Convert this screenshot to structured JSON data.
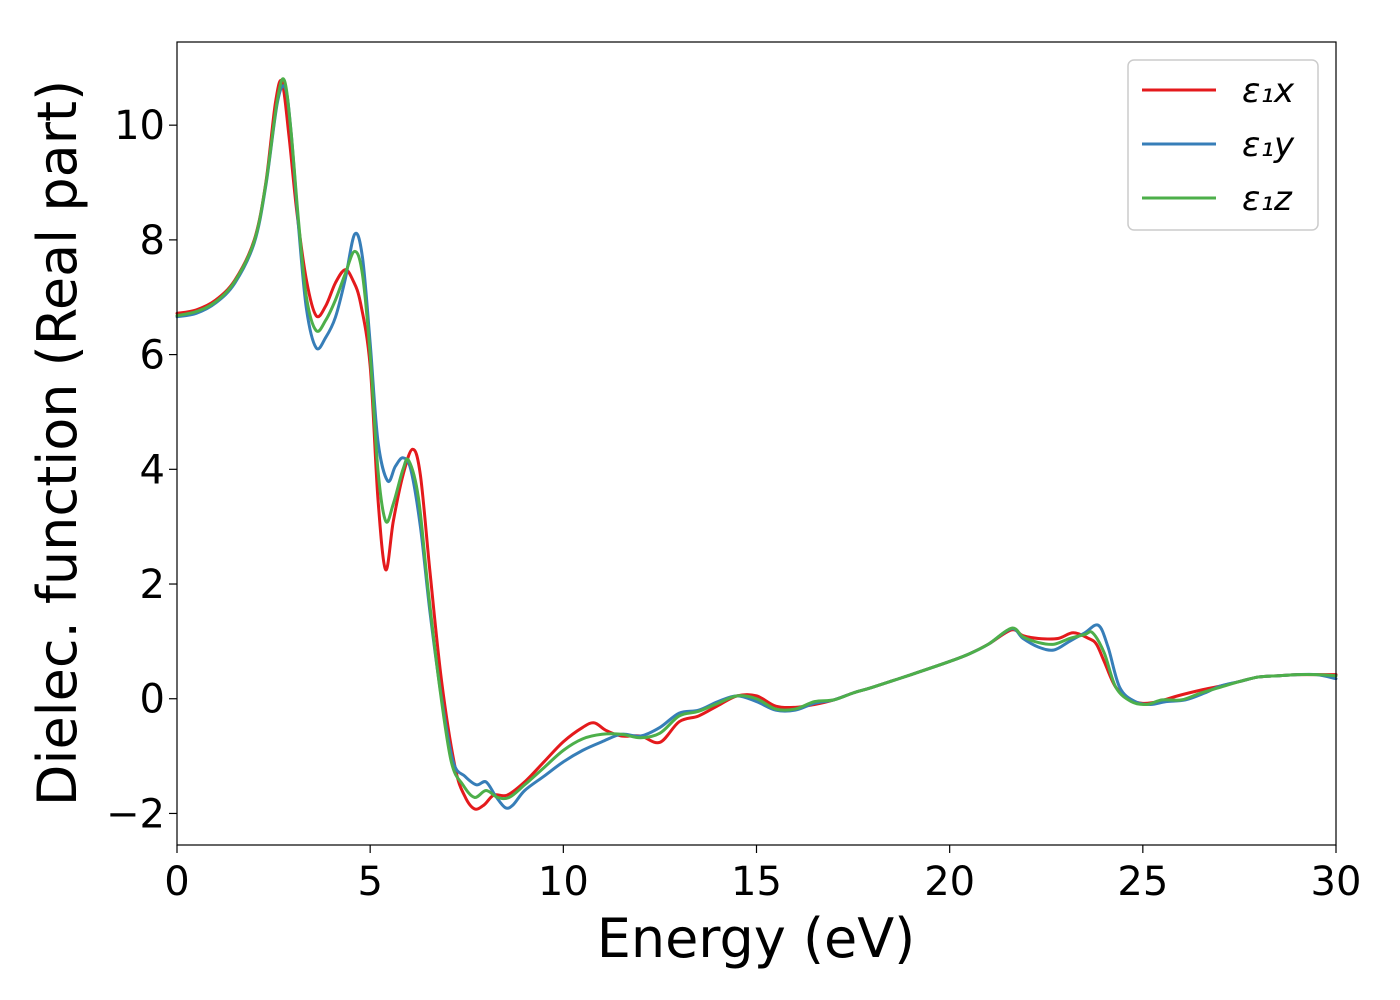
{
  "chart_data": {
    "type": "line",
    "xlabel": "Energy (eV)",
    "ylabel": "Dielec. function (Real part)",
    "xlim": [
      0,
      30
    ],
    "ylim": [
      -2.55,
      11.45
    ],
    "x_ticks": [
      0,
      5,
      10,
      15,
      20,
      25,
      30
    ],
    "x_tick_labels": [
      "0",
      "5",
      "10",
      "15",
      "20",
      "25",
      "30"
    ],
    "y_ticks": [
      -2,
      0,
      2,
      4,
      6,
      8,
      10
    ],
    "y_tick_labels": [
      "−2",
      "0",
      "2",
      "4",
      "6",
      "8",
      "10"
    ],
    "grid": false,
    "legend_position": "top-right",
    "series": [
      {
        "name": "ε₁x",
        "color": "#e41a1c",
        "points": [
          [
            0,
            6.72
          ],
          [
            0.5,
            6.78
          ],
          [
            1.0,
            6.95
          ],
          [
            1.5,
            7.3
          ],
          [
            2.0,
            8.0
          ],
          [
            2.3,
            9.0
          ],
          [
            2.55,
            10.4
          ],
          [
            2.72,
            10.75
          ],
          [
            2.9,
            9.8
          ],
          [
            3.1,
            8.5
          ],
          [
            3.35,
            7.3
          ],
          [
            3.6,
            6.68
          ],
          [
            3.85,
            6.85
          ],
          [
            4.1,
            7.25
          ],
          [
            4.35,
            7.48
          ],
          [
            4.55,
            7.3
          ],
          [
            4.75,
            6.9
          ],
          [
            5.0,
            5.8
          ],
          [
            5.2,
            3.5
          ],
          [
            5.4,
            2.25
          ],
          [
            5.6,
            3.1
          ],
          [
            5.85,
            3.9
          ],
          [
            6.1,
            4.35
          ],
          [
            6.3,
            3.9
          ],
          [
            6.55,
            2.2
          ],
          [
            6.85,
            0.3
          ],
          [
            7.2,
            -1.2
          ],
          [
            7.45,
            -1.7
          ],
          [
            7.7,
            -1.92
          ],
          [
            7.95,
            -1.85
          ],
          [
            8.2,
            -1.68
          ],
          [
            8.55,
            -1.68
          ],
          [
            9.0,
            -1.45
          ],
          [
            9.5,
            -1.1
          ],
          [
            10.0,
            -0.75
          ],
          [
            10.5,
            -0.5
          ],
          [
            10.8,
            -0.42
          ],
          [
            11.1,
            -0.55
          ],
          [
            11.5,
            -0.65
          ],
          [
            12.0,
            -0.65
          ],
          [
            12.5,
            -0.76
          ],
          [
            13.0,
            -0.4
          ],
          [
            13.5,
            -0.3
          ],
          [
            14.0,
            -0.12
          ],
          [
            14.5,
            0.05
          ],
          [
            15.0,
            0.05
          ],
          [
            15.5,
            -0.13
          ],
          [
            16.0,
            -0.15
          ],
          [
            16.5,
            -0.1
          ],
          [
            17.0,
            -0.02
          ],
          [
            17.5,
            0.1
          ],
          [
            18.0,
            0.2
          ],
          [
            19.0,
            0.42
          ],
          [
            20.0,
            0.65
          ],
          [
            20.5,
            0.78
          ],
          [
            21.0,
            0.95
          ],
          [
            21.6,
            1.2
          ],
          [
            21.9,
            1.1
          ],
          [
            22.3,
            1.05
          ],
          [
            22.8,
            1.05
          ],
          [
            23.2,
            1.15
          ],
          [
            23.6,
            1.05
          ],
          [
            23.8,
            0.95
          ],
          [
            24.0,
            0.65
          ],
          [
            24.3,
            0.2
          ],
          [
            24.7,
            -0.02
          ],
          [
            25.0,
            -0.08
          ],
          [
            25.4,
            -0.05
          ],
          [
            25.9,
            0.05
          ],
          [
            26.5,
            0.15
          ],
          [
            27.0,
            0.22
          ],
          [
            27.5,
            0.3
          ],
          [
            28.0,
            0.38
          ],
          [
            28.5,
            0.4
          ],
          [
            29.0,
            0.42
          ],
          [
            29.5,
            0.42
          ],
          [
            30.0,
            0.42
          ]
        ]
      },
      {
        "name": "ε₁y",
        "color": "#377eb8",
        "points": [
          [
            0,
            6.66
          ],
          [
            0.5,
            6.72
          ],
          [
            1.0,
            6.9
          ],
          [
            1.5,
            7.25
          ],
          [
            2.0,
            7.95
          ],
          [
            2.3,
            8.95
          ],
          [
            2.6,
            10.4
          ],
          [
            2.8,
            10.65
          ],
          [
            2.95,
            9.9
          ],
          [
            3.15,
            8.2
          ],
          [
            3.35,
            6.8
          ],
          [
            3.6,
            6.12
          ],
          [
            3.85,
            6.3
          ],
          [
            4.1,
            6.65
          ],
          [
            4.35,
            7.3
          ],
          [
            4.6,
            8.1
          ],
          [
            4.8,
            7.7
          ],
          [
            5.0,
            6.2
          ],
          [
            5.2,
            4.5
          ],
          [
            5.45,
            3.8
          ],
          [
            5.65,
            4.05
          ],
          [
            5.85,
            4.2
          ],
          [
            6.05,
            4.0
          ],
          [
            6.3,
            3.0
          ],
          [
            6.55,
            1.5
          ],
          [
            6.85,
            0.0
          ],
          [
            7.15,
            -1.1
          ],
          [
            7.45,
            -1.35
          ],
          [
            7.75,
            -1.5
          ],
          [
            8.0,
            -1.45
          ],
          [
            8.25,
            -1.7
          ],
          [
            8.5,
            -1.9
          ],
          [
            8.7,
            -1.85
          ],
          [
            9.0,
            -1.6
          ],
          [
            9.5,
            -1.35
          ],
          [
            10.0,
            -1.1
          ],
          [
            10.5,
            -0.9
          ],
          [
            11.0,
            -0.75
          ],
          [
            11.5,
            -0.62
          ],
          [
            12.0,
            -0.65
          ],
          [
            12.5,
            -0.5
          ],
          [
            13.0,
            -0.25
          ],
          [
            13.5,
            -0.2
          ],
          [
            14.0,
            -0.05
          ],
          [
            14.5,
            0.05
          ],
          [
            15.0,
            -0.05
          ],
          [
            15.5,
            -0.2
          ],
          [
            16.0,
            -0.2
          ],
          [
            16.5,
            -0.08
          ],
          [
            17.0,
            -0.02
          ],
          [
            17.5,
            0.1
          ],
          [
            18.0,
            0.2
          ],
          [
            19.0,
            0.42
          ],
          [
            20.0,
            0.65
          ],
          [
            20.5,
            0.78
          ],
          [
            21.0,
            0.95
          ],
          [
            21.6,
            1.22
          ],
          [
            21.9,
            1.05
          ],
          [
            22.3,
            0.9
          ],
          [
            22.7,
            0.85
          ],
          [
            23.1,
            1.0
          ],
          [
            23.5,
            1.15
          ],
          [
            23.85,
            1.28
          ],
          [
            24.1,
            0.9
          ],
          [
            24.4,
            0.2
          ],
          [
            24.8,
            -0.05
          ],
          [
            25.2,
            -0.1
          ],
          [
            25.6,
            -0.05
          ],
          [
            26.1,
            -0.02
          ],
          [
            26.6,
            0.1
          ],
          [
            27.0,
            0.22
          ],
          [
            27.5,
            0.3
          ],
          [
            28.0,
            0.38
          ],
          [
            28.5,
            0.4
          ],
          [
            29.0,
            0.42
          ],
          [
            29.5,
            0.42
          ],
          [
            30.0,
            0.35
          ]
        ]
      },
      {
        "name": "ε₁z",
        "color": "#4daf4a",
        "points": [
          [
            0,
            6.68
          ],
          [
            0.5,
            6.75
          ],
          [
            1.0,
            6.92
          ],
          [
            1.5,
            7.28
          ],
          [
            2.0,
            7.98
          ],
          [
            2.3,
            8.98
          ],
          [
            2.6,
            10.45
          ],
          [
            2.78,
            10.78
          ],
          [
            2.95,
            9.9
          ],
          [
            3.15,
            8.3
          ],
          [
            3.35,
            7.0
          ],
          [
            3.6,
            6.42
          ],
          [
            3.85,
            6.6
          ],
          [
            4.1,
            6.95
          ],
          [
            4.35,
            7.4
          ],
          [
            4.6,
            7.8
          ],
          [
            4.8,
            7.4
          ],
          [
            5.0,
            6.0
          ],
          [
            5.2,
            4.0
          ],
          [
            5.4,
            3.1
          ],
          [
            5.6,
            3.4
          ],
          [
            5.85,
            4.0
          ],
          [
            6.0,
            4.15
          ],
          [
            6.25,
            3.5
          ],
          [
            6.5,
            1.9
          ],
          [
            6.8,
            0.2
          ],
          [
            7.1,
            -1.1
          ],
          [
            7.4,
            -1.5
          ],
          [
            7.7,
            -1.72
          ],
          [
            8.0,
            -1.6
          ],
          [
            8.3,
            -1.72
          ],
          [
            8.6,
            -1.72
          ],
          [
            9.0,
            -1.5
          ],
          [
            9.5,
            -1.2
          ],
          [
            10.0,
            -0.9
          ],
          [
            10.5,
            -0.7
          ],
          [
            11.0,
            -0.62
          ],
          [
            11.5,
            -0.62
          ],
          [
            12.0,
            -0.68
          ],
          [
            12.5,
            -0.6
          ],
          [
            13.0,
            -0.3
          ],
          [
            13.5,
            -0.22
          ],
          [
            14.0,
            -0.08
          ],
          [
            14.5,
            0.05
          ],
          [
            15.0,
            0.0
          ],
          [
            15.5,
            -0.18
          ],
          [
            16.0,
            -0.18
          ],
          [
            16.5,
            -0.05
          ],
          [
            17.0,
            -0.02
          ],
          [
            17.5,
            0.1
          ],
          [
            18.0,
            0.2
          ],
          [
            19.0,
            0.42
          ],
          [
            20.0,
            0.65
          ],
          [
            20.5,
            0.78
          ],
          [
            21.0,
            0.95
          ],
          [
            21.6,
            1.23
          ],
          [
            21.9,
            1.08
          ],
          [
            22.3,
            0.98
          ],
          [
            22.7,
            0.95
          ],
          [
            23.1,
            1.05
          ],
          [
            23.5,
            1.12
          ],
          [
            23.7,
            1.15
          ],
          [
            24.0,
            0.8
          ],
          [
            24.3,
            0.2
          ],
          [
            24.7,
            -0.05
          ],
          [
            25.1,
            -0.1
          ],
          [
            25.5,
            -0.02
          ],
          [
            26.0,
            -0.02
          ],
          [
            26.5,
            0.1
          ],
          [
            27.0,
            0.2
          ],
          [
            27.5,
            0.3
          ],
          [
            28.0,
            0.38
          ],
          [
            28.5,
            0.4
          ],
          [
            29.0,
            0.42
          ],
          [
            29.5,
            0.42
          ],
          [
            30.0,
            0.4
          ]
        ]
      }
    ]
  }
}
